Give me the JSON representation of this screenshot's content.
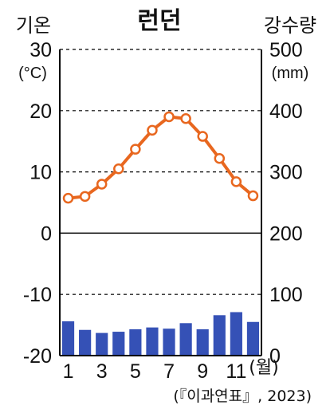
{
  "chart_data": {
    "type": "climate",
    "title": "런던",
    "left_axis": {
      "label": "기온",
      "unit": "(°C)",
      "ylim": [
        -20,
        30
      ],
      "ticks": [
        "30",
        "20",
        "10",
        "0",
        "-10",
        "-20"
      ]
    },
    "right_axis": {
      "label": "강수량",
      "unit": "(mm)",
      "ylim": [
        0,
        500
      ],
      "ticks": [
        "500",
        "400",
        "300",
        "200",
        "100",
        "0"
      ]
    },
    "x_ticks": [
      "1",
      "3",
      "5",
      "7",
      "9",
      "11"
    ],
    "x_unit": "(월)",
    "months": [
      1,
      2,
      3,
      4,
      5,
      6,
      7,
      8,
      9,
      10,
      11,
      12
    ],
    "temperature": [
      5.7,
      6.0,
      8.0,
      10.5,
      13.7,
      16.8,
      19.0,
      18.7,
      15.8,
      12.2,
      8.4,
      6.1
    ],
    "precipitation": [
      56,
      42,
      37,
      39,
      43,
      46,
      44,
      53,
      43,
      66,
      71,
      55
    ],
    "colors": {
      "line": "#E8671F",
      "marker_fill": "#FFFFFF",
      "bar": "#3551B6",
      "axis": "#000000",
      "grid": "#000000"
    },
    "grid": "dashed",
    "source": "(『이과연표』, 2023)"
  }
}
